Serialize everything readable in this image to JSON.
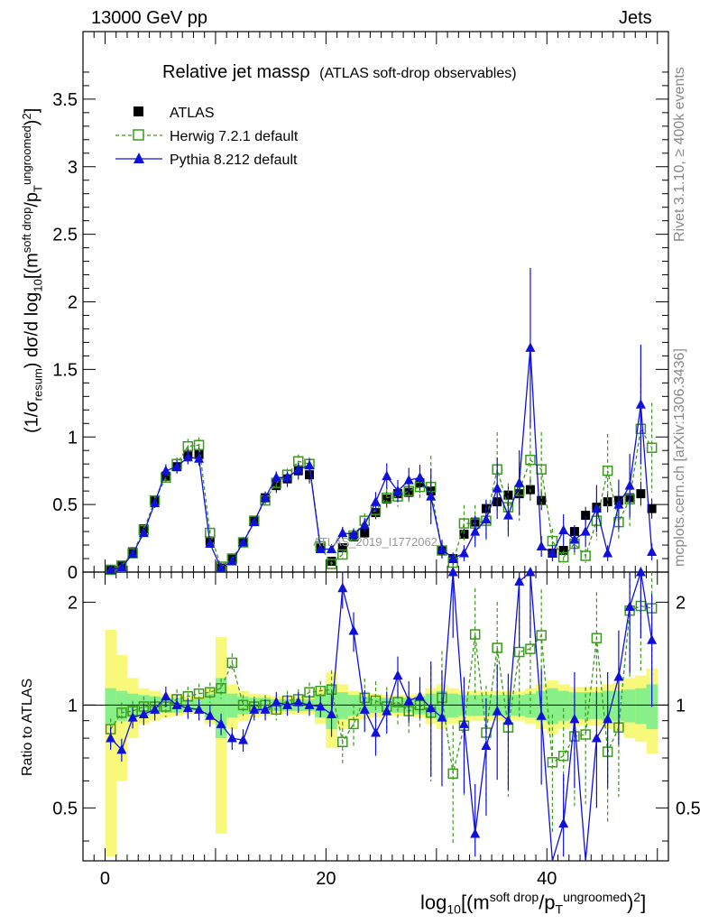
{
  "header": {
    "left": "13000 GeV pp",
    "right": "Jets"
  },
  "side_text": {
    "rivet": "Rivet 3.1.10, ≥ 400k events",
    "mcplots": "mcplots.cern.ch [arXiv:1306.3436]"
  },
  "watermark": "ATLAS_2019_I1772062",
  "axis_labels": {
    "y_top": "(1/σresum) dσ/d log10[(msoft drop/pTungroomed)2]",
    "y_bottom": "Ratio to ATLAS",
    "x": "log10[(msoft drop/pTungroomed)2]"
  },
  "chart_data": {
    "type": "line",
    "title": "Relative jet massρ",
    "subtitle": "(ATLAS soft-drop observables)",
    "xlim": [
      -2,
      51
    ],
    "top_panel": {
      "ylim": [
        0,
        4.0
      ],
      "yticks": [
        0,
        0.5,
        1,
        1.5,
        2,
        2.5,
        3,
        3.5
      ]
    },
    "ratio_panel": {
      "ylim": [
        0.35,
        2.45
      ],
      "yticks": [
        0.5,
        1,
        2
      ]
    },
    "xticks": [
      0,
      20,
      40
    ],
    "legend": {
      "atlas": "ATLAS",
      "herwig": "Herwig 7.2.1 default",
      "pythia": "Pythia 8.212 default"
    },
    "colors": {
      "atlas": "#000000",
      "herwig": "#3a9a1a",
      "pythia": "#1010dd",
      "band_inner": "#88f088",
      "band_outer": "#f8f87a"
    },
    "x": [
      0.5,
      1.5,
      2.5,
      3.5,
      4.5,
      5.5,
      6.5,
      7.5,
      8.5,
      9.5,
      10.5,
      11.5,
      12.5,
      13.5,
      14.5,
      15.5,
      16.5,
      17.5,
      18.5,
      19.5,
      20.5,
      21.5,
      22.5,
      23.5,
      24.5,
      25.5,
      26.5,
      27.5,
      28.5,
      29.5,
      30.5,
      31.5,
      32.5,
      33.5,
      34.5,
      35.5,
      36.5,
      37.5,
      38.5,
      39.5,
      40.5,
      41.5,
      42.5,
      43.5,
      44.5,
      45.5,
      46.5,
      47.5,
      48.5,
      49.5
    ],
    "series": [
      {
        "name": "ATLAS",
        "values": [
          0.02,
          0.05,
          0.15,
          0.32,
          0.53,
          0.71,
          0.78,
          0.87,
          0.87,
          0.23,
          0.03,
          0.1,
          0.22,
          0.38,
          0.55,
          0.64,
          0.69,
          0.75,
          0.72,
          0.18,
          0.08,
          0.18,
          0.26,
          0.29,
          0.44,
          0.54,
          0.58,
          0.59,
          0.66,
          0.6,
          0.16,
          0.1,
          0.28,
          0.37,
          0.47,
          0.52,
          0.57,
          0.58,
          0.61,
          0.53,
          0.14,
          0.16,
          0.3,
          0.42,
          0.48,
          0.52,
          0.53,
          0.55,
          0.58,
          0.47
        ]
      },
      {
        "name": "Herwig",
        "values": [
          0.017,
          0.048,
          0.14,
          0.31,
          0.53,
          0.7,
          0.8,
          0.93,
          0.94,
          0.29,
          0.04,
          0.1,
          0.22,
          0.38,
          0.53,
          0.66,
          0.72,
          0.82,
          0.8,
          0.19,
          0.06,
          0.13,
          0.27,
          0.38,
          0.46,
          0.55,
          0.56,
          0.6,
          0.63,
          0.63,
          0.16,
          0.07,
          0.36,
          0.36,
          0.38,
          0.76,
          0.48,
          0.6,
          0.83,
          0.76,
          0.23,
          0.11,
          0.21,
          0.12,
          0.38,
          0.75,
          0.37,
          0.54,
          1.06,
          0.92
        ]
      },
      {
        "name": "Pythia",
        "values": [
          0.016,
          0.037,
          0.135,
          0.29,
          0.51,
          0.75,
          0.78,
          0.85,
          0.84,
          0.21,
          0.03,
          0.08,
          0.22,
          0.37,
          0.55,
          0.7,
          0.7,
          0.76,
          0.79,
          0.17,
          0.17,
          0.29,
          0.28,
          0.35,
          0.52,
          0.71,
          0.6,
          0.68,
          0.7,
          0.56,
          0.17,
          0.1,
          0.14,
          0.3,
          0.39,
          0.62,
          0.42,
          0.66,
          1.66,
          0.19,
          0.14,
          0.31,
          0.24,
          0.3,
          0.47,
          0.14,
          0.5,
          0.64,
          1.24,
          0.15
        ]
      }
    ],
    "ratio_series": [
      {
        "name": "Herwig",
        "values": [
          0.85,
          0.95,
          0.96,
          0.99,
          0.99,
          0.99,
          1.04,
          1.06,
          1.08,
          1.09,
          1.12,
          1.33,
          1.0,
          0.99,
          1.0,
          0.97,
          1.03,
          1.04,
          1.09,
          1.1,
          1.11,
          0.78,
          0.88,
          1.05,
          1.03,
          0.99,
          1.02,
          0.96,
          1.0,
          0.95,
          1.05,
          0.63,
          0.87,
          1.61,
          0.83,
          1.47,
          0.86,
          1.43,
          1.46,
          1.6,
          0.68,
          0.71,
          0.81,
          0.82,
          1.57,
          0.73,
          0.86,
          1.89,
          1.95,
          1.92
        ]
      },
      {
        "name": "Pythia",
        "values": [
          0.8,
          0.74,
          0.92,
          0.94,
          0.97,
          1.06,
          1.0,
          0.98,
          0.97,
          0.93,
          0.88,
          0.8,
          0.79,
          0.97,
          0.97,
          1.02,
          1.0,
          1.02,
          1.0,
          0.99,
          0.94,
          2.2,
          1.65,
          0.97,
          0.83,
          0.96,
          1.22,
          1.03,
          1.06,
          0.98,
          0.92,
          2.45,
          0.88,
          0.42,
          0.76,
          0.96,
          0.9,
          2.3,
          2.45,
          0.93,
          0.23,
          0.45,
          0.91,
          0.26,
          0.8,
          0.91,
          1.21,
          1.94,
          2.45,
          1.55
        ]
      }
    ],
    "band_inner": [
      0.12,
      0.1,
      0.08,
      0.07,
      0.06,
      0.05,
      0.05,
      0.04,
      0.04,
      0.08,
      0.2,
      0.08,
      0.06,
      0.05,
      0.05,
      0.04,
      0.04,
      0.04,
      0.04,
      0.08,
      0.15,
      0.09,
      0.07,
      0.06,
      0.05,
      0.05,
      0.05,
      0.05,
      0.06,
      0.08,
      0.1,
      0.08,
      0.07,
      0.07,
      0.07,
      0.07,
      0.07,
      0.07,
      0.08,
      0.1,
      0.12,
      0.1,
      0.09,
      0.09,
      0.09,
      0.1,
      0.1,
      0.11,
      0.12,
      0.15
    ],
    "band_outer": [
      0.66,
      0.4,
      0.2,
      0.12,
      0.1,
      0.08,
      0.07,
      0.06,
      0.06,
      0.12,
      0.58,
      0.15,
      0.1,
      0.08,
      0.07,
      0.06,
      0.06,
      0.06,
      0.06,
      0.12,
      0.25,
      0.15,
      0.1,
      0.09,
      0.08,
      0.07,
      0.07,
      0.07,
      0.08,
      0.12,
      0.15,
      0.12,
      0.1,
      0.1,
      0.1,
      0.1,
      0.1,
      0.1,
      0.12,
      0.15,
      0.18,
      0.15,
      0.13,
      0.13,
      0.13,
      0.15,
      0.16,
      0.2,
      0.22,
      0.28
    ]
  }
}
